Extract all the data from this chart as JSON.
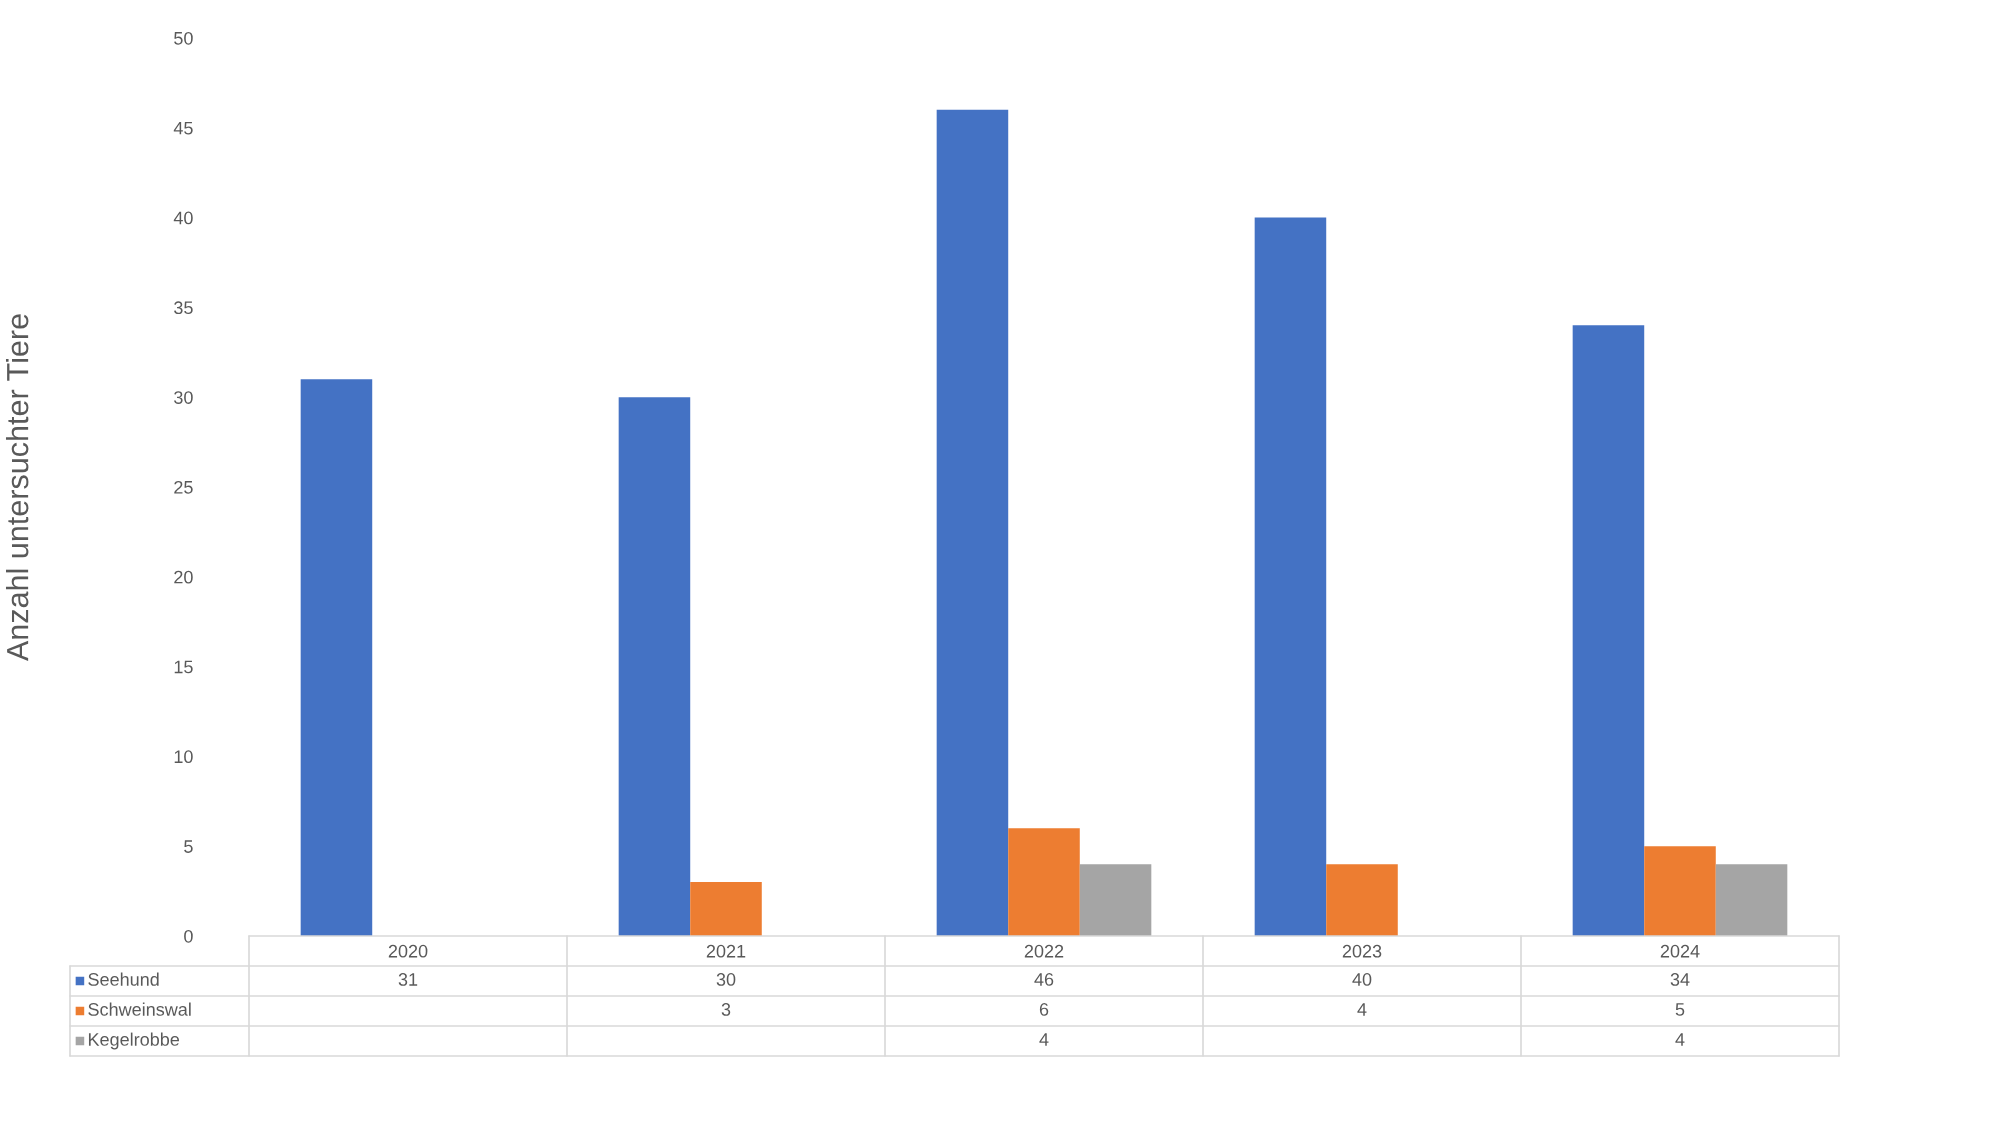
{
  "chart_data": {
    "type": "bar",
    "ylabel": "Anzahl untersuchter Tiere",
    "categories": [
      "2020",
      "2021",
      "2022",
      "2023",
      "2024"
    ],
    "series": [
      {
        "name": "Seehund",
        "color": "#4472c4",
        "values": [
          31,
          30,
          46,
          40,
          34
        ]
      },
      {
        "name": "Schweinswal",
        "color": "#ed7d31",
        "values": [
          null,
          3,
          6,
          4,
          5
        ]
      },
      {
        "name": "Kegelrobbe",
        "color": "#a5a5a5",
        "values": [
          null,
          null,
          4,
          null,
          4
        ]
      }
    ],
    "ylim": [
      0,
      50
    ],
    "yticks": [
      0,
      5,
      10,
      15,
      20,
      25,
      30,
      35,
      40,
      45,
      50
    ],
    "grid": false,
    "legend": "bottom",
    "data_labels": true
  }
}
